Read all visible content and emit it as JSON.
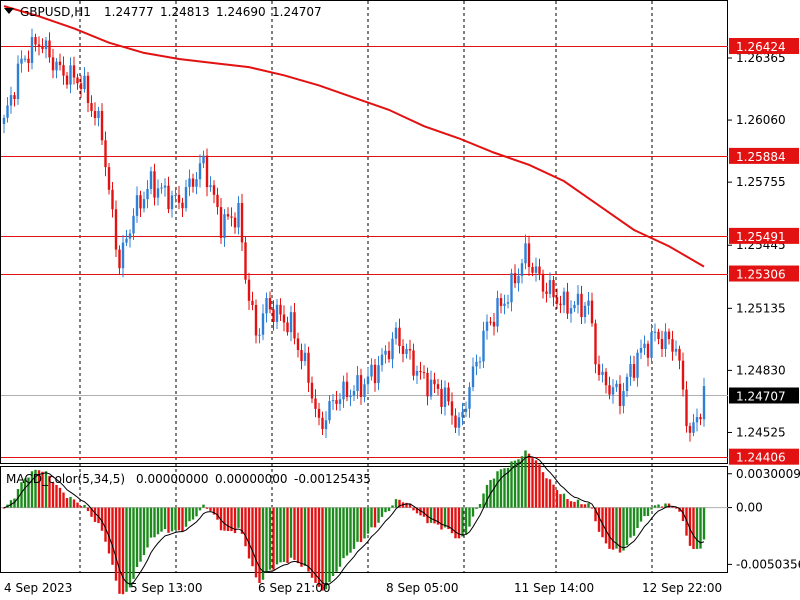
{
  "header": {
    "symbol": "GBPUSD,H1",
    "open": "1.24777",
    "high": "1.24813",
    "low": "1.24690",
    "close": "1.24707"
  },
  "macd": {
    "label": "MACD_color(5,34,5)",
    "v1": "0.00000000",
    "v2": "0.00000000",
    "v3": "-0.00125435"
  },
  "colors": {
    "bull": "#2f7fd6",
    "bear": "#e31212",
    "ma": "#e31212",
    "level": "#e31212",
    "grid": "#000000",
    "hist_pos": "#1c8a1c",
    "hist_neg": "#e31212",
    "signal": "#000000"
  },
  "chart_data": [
    {
      "type": "candlestick",
      "title": "GBPUSD,H1",
      "price_axis_labels": [
        "1.26365",
        "1.26060",
        "1.25755",
        "1.25445",
        "1.25135",
        "1.24830",
        "1.24525"
      ],
      "x_tick_labels": [
        "4 Sep 2023",
        "5 Sep 13:00",
        "6 Sep 21:00",
        "8 Sep 05:00",
        "11 Sep 14:00",
        "12 Sep 22:00"
      ],
      "ylim": [
        1.2437,
        1.2665
      ],
      "levels": [
        "1.26424",
        "1.25884",
        "1.25491",
        "1.25306",
        "1.24406"
      ],
      "current_price": "1.24707",
      "moving_average": [
        [
          0,
          1.2662
        ],
        [
          10,
          1.2657
        ],
        [
          20,
          1.2651
        ],
        [
          30,
          1.2644
        ],
        [
          40,
          1.2639
        ],
        [
          50,
          1.2636
        ],
        [
          60,
          1.2634
        ],
        [
          70,
          1.2632
        ],
        [
          80,
          1.2628
        ],
        [
          90,
          1.2623
        ],
        [
          100,
          1.2617
        ],
        [
          110,
          1.2611
        ],
        [
          120,
          1.2603
        ],
        [
          130,
          1.2597
        ],
        [
          140,
          1.259
        ],
        [
          150,
          1.2584
        ],
        [
          160,
          1.2576
        ],
        [
          170,
          1.2564
        ],
        [
          180,
          1.2552
        ],
        [
          190,
          1.2544
        ],
        [
          200,
          1.2534
        ]
      ],
      "anchors": [
        [
          0,
          1.2605
        ],
        [
          5,
          1.2635
        ],
        [
          10,
          1.2645
        ],
        [
          16,
          1.263
        ],
        [
          22,
          1.2625
        ],
        [
          28,
          1.26
        ],
        [
          30,
          1.257
        ],
        [
          33,
          1.2535
        ],
        [
          37,
          1.256
        ],
        [
          42,
          1.2575
        ],
        [
          50,
          1.2565
        ],
        [
          57,
          1.2585
        ],
        [
          62,
          1.2555
        ],
        [
          67,
          1.256
        ],
        [
          69,
          1.253
        ],
        [
          72,
          1.25
        ],
        [
          75,
          1.2515
        ],
        [
          82,
          1.2505
        ],
        [
          87,
          1.248
        ],
        [
          90,
          1.2455
        ],
        [
          95,
          1.247
        ],
        [
          102,
          1.2475
        ],
        [
          107,
          1.2485
        ],
        [
          112,
          1.25
        ],
        [
          119,
          1.248
        ],
        [
          126,
          1.247
        ],
        [
          130,
          1.2455
        ],
        [
          133,
          1.2475
        ],
        [
          138,
          1.2505
        ],
        [
          144,
          1.252
        ],
        [
          149,
          1.254
        ],
        [
          154,
          1.2525
        ],
        [
          160,
          1.2515
        ],
        [
          167,
          1.2515
        ],
        [
          170,
          1.248
        ],
        [
          176,
          1.247
        ],
        [
          181,
          1.249
        ],
        [
          186,
          1.25
        ],
        [
          192,
          1.2495
        ],
        [
          196,
          1.245
        ],
        [
          200,
          1.247
        ]
      ]
    },
    {
      "type": "histogram",
      "title": "MACD_color(5,34,5)",
      "axis_labels": [
        "0.0030009",
        "0.00",
        "-0.0050356"
      ],
      "ylim": [
        -0.0058,
        0.0036
      ]
    }
  ]
}
